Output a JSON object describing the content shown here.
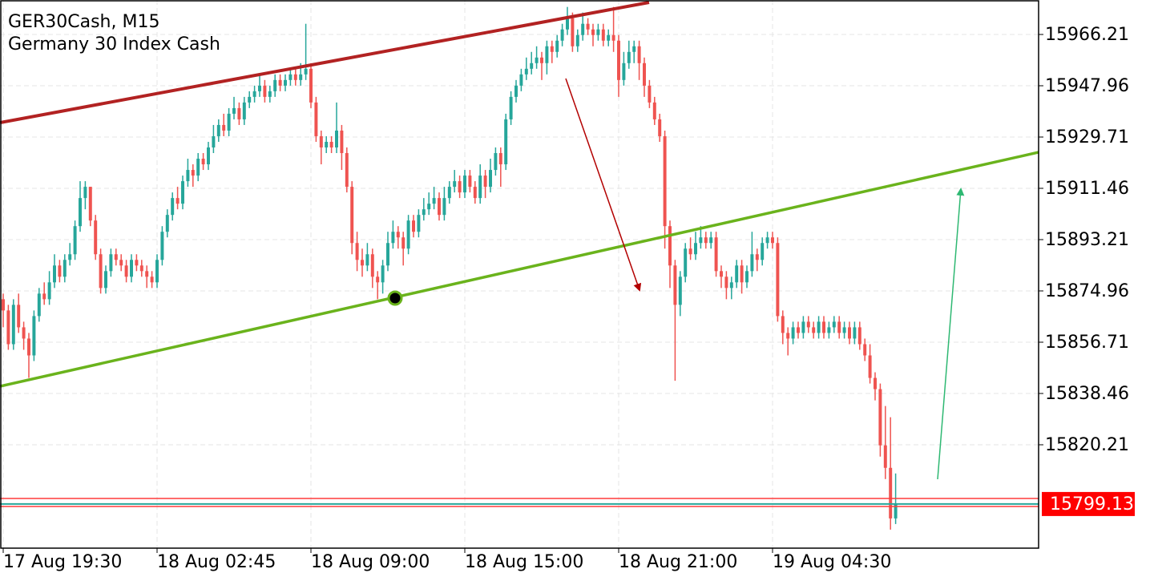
{
  "chart_data": {
    "type": "candlestick",
    "title": "GER30Cash, M15",
    "subtitle": "Germany 30 Index Cash",
    "up_color": "#26a69a",
    "down_color": "#ef5350",
    "grid": true,
    "current_price": 15799.13,
    "current_price_color": "#ff0000",
    "xlim": [
      -0.625,
      201.875
    ],
    "xticks": [
      {
        "value": 0,
        "label": "17 Aug 19:30"
      },
      {
        "value": 30,
        "label": "18 Aug 02:45"
      },
      {
        "value": 60,
        "label": "18 Aug 09:00"
      },
      {
        "value": 90,
        "label": "18 Aug 15:00"
      },
      {
        "value": 120,
        "label": "18 Aug 21:00"
      },
      {
        "value": 150,
        "label": "19 Aug 04:30"
      }
    ],
    "ylim": [
      15783.42,
      15978.47
    ],
    "yticks": [
      15820.21,
      15838.46,
      15856.71,
      15874.96,
      15893.21,
      15911.46,
      15929.71,
      15947.96,
      15966.21
    ],
    "open": [
      15872,
      15868,
      15856,
      15870,
      15862,
      15858,
      15852,
      15866,
      15874,
      15872,
      15878,
      15884,
      15880,
      15886,
      15888,
      15898,
      15908,
      15912,
      15900,
      15888,
      15876,
      15882,
      15888,
      15886,
      15884,
      15880,
      15886,
      15884,
      15882,
      15880,
      15878,
      15886,
      15896,
      15902,
      15908,
      15906,
      15914,
      15918,
      15916,
      15922,
      15920,
      15926,
      15930,
      15934,
      15932,
      15938,
      15940,
      15936,
      15942,
      15944,
      15946,
      15948,
      15944,
      15946,
      15950,
      15948,
      15950,
      15952,
      15950,
      15952,
      15954,
      15942,
      15930,
      15926,
      15928,
      15926,
      15932,
      15924,
      15912,
      15892,
      15886,
      15884,
      15888,
      15880,
      15878,
      15884,
      15892,
      15896,
      15894,
      15890,
      15900,
      15896,
      15902,
      15904,
      15906,
      15908,
      15902,
      15908,
      15912,
      15914,
      15910,
      15916,
      15912,
      15908,
      15916,
      15912,
      15918,
      15924,
      15920,
      15936,
      15944,
      15948,
      15952,
      15954,
      15956,
      15958,
      15956,
      15962,
      15960,
      15964,
      15968,
      15972,
      15962,
      15966,
      15970,
      15968,
      15966,
      15968,
      15964,
      15966,
      15964,
      15950,
      15956,
      15960,
      15962,
      15956,
      15948,
      15942,
      15936,
      15930,
      15898,
      15884,
      15870,
      15880,
      15890,
      15888,
      15892,
      15894,
      15892,
      15894,
      15882,
      15880,
      15876,
      15878,
      15884,
      15878,
      15882,
      15888,
      15886,
      15892,
      15894,
      15892,
      15866,
      15860,
      15858,
      15862,
      15860,
      15864,
      15862,
      15860,
      15864,
      15860,
      15862,
      15864,
      15860,
      15862,
      15858,
      15862,
      15856,
      15852,
      15844,
      15840,
      15820,
      15812,
      15794
    ],
    "high": [
      15874,
      15870,
      15872,
      15874,
      15864,
      15860,
      15868,
      15876,
      15878,
      15882,
      15888,
      15886,
      15888,
      15892,
      15900,
      15914,
      15914,
      15912,
      15902,
      15890,
      15884,
      15890,
      15890,
      15888,
      15886,
      15888,
      15888,
      15886,
      15884,
      15882,
      15888,
      15898,
      15904,
      15910,
      15912,
      15916,
      15922,
      15920,
      15924,
      15924,
      15928,
      15934,
      15936,
      15938,
      15940,
      15944,
      15942,
      15944,
      15946,
      15948,
      15952,
      15950,
      15948,
      15952,
      15952,
      15952,
      15954,
      15954,
      15956,
      15970,
      15956,
      15944,
      15932,
      15930,
      15930,
      15942,
      15934,
      15926,
      15914,
      15896,
      15890,
      15892,
      15890,
      15882,
      15886,
      15896,
      15900,
      15898,
      15896,
      15902,
      15902,
      15904,
      15908,
      15910,
      15912,
      15910,
      15912,
      15914,
      15918,
      15916,
      15918,
      15918,
      15914,
      15920,
      15918,
      15922,
      15926,
      15926,
      15938,
      15946,
      15950,
      15954,
      15958,
      15960,
      15962,
      15960,
      15964,
      15964,
      15966,
      15970,
      15976,
      15974,
      15968,
      15974,
      15972,
      15970,
      15970,
      15970,
      15968,
      15976,
      15966,
      15960,
      15964,
      15964,
      15964,
      15958,
      15950,
      15944,
      15938,
      15932,
      15900,
      15886,
      15882,
      15892,
      15894,
      15896,
      15898,
      15896,
      15896,
      15896,
      15884,
      15882,
      15880,
      15886,
      15886,
      15884,
      15896,
      15890,
      15894,
      15896,
      15896,
      15894,
      15868,
      15862,
      15864,
      15864,
      15866,
      15866,
      15864,
      15866,
      15866,
      15864,
      15866,
      15866,
      15864,
      15864,
      15864,
      15864,
      15858,
      15856,
      15846,
      15842,
      15834,
      15830,
      15810
    ],
    "low": [
      15862,
      15854,
      15854,
      15860,
      15854,
      15844,
      15850,
      15864,
      15870,
      15870,
      15876,
      15878,
      15878,
      15884,
      15886,
      15896,
      15904,
      15898,
      15886,
      15874,
      15874,
      15880,
      15884,
      15882,
      15878,
      15878,
      15882,
      15880,
      15876,
      15876,
      15876,
      15884,
      15894,
      15900,
      15904,
      15904,
      15912,
      15912,
      15914,
      15918,
      15918,
      15924,
      15928,
      15930,
      15930,
      15936,
      15934,
      15934,
      15940,
      15942,
      15944,
      15942,
      15942,
      15944,
      15946,
      15946,
      15948,
      15948,
      15948,
      15950,
      15940,
      15928,
      15920,
      15924,
      15924,
      15924,
      15918,
      15910,
      15888,
      15882,
      15880,
      15882,
      15876,
      15872,
      15874,
      15882,
      15890,
      15890,
      15884,
      15888,
      15894,
      15894,
      15900,
      15902,
      15904,
      15900,
      15900,
      15906,
      15910,
      15908,
      15908,
      15910,
      15906,
      15906,
      15908,
      15910,
      15916,
      15912,
      15918,
      15934,
      15942,
      15946,
      15950,
      15952,
      15954,
      15950,
      15952,
      15956,
      15958,
      15962,
      15966,
      15960,
      15960,
      15964,
      15966,
      15962,
      15964,
      15962,
      15962,
      15960,
      15944,
      15948,
      15954,
      15956,
      15950,
      15944,
      15940,
      15934,
      15928,
      15890,
      15876,
      15843,
      15866,
      15878,
      15886,
      15886,
      15890,
      15890,
      15890,
      15880,
      15876,
      15872,
      15872,
      15876,
      15874,
      15876,
      15880,
      15882,
      15884,
      15890,
      15890,
      15864,
      15856,
      15852,
      15856,
      15858,
      15858,
      15860,
      15858,
      15858,
      15858,
      15858,
      15860,
      15858,
      15858,
      15856,
      15856,
      15854,
      15850,
      15842,
      15836,
      15816,
      15808,
      15790,
      15792
    ],
    "close": [
      15868,
      15856,
      15870,
      15862,
      15858,
      15852,
      15866,
      15874,
      15872,
      15878,
      15884,
      15880,
      15886,
      15888,
      15898,
      15908,
      15912,
      15900,
      15888,
      15876,
      15882,
      15888,
      15886,
      15884,
      15880,
      15886,
      15884,
      15882,
      15880,
      15878,
      15886,
      15896,
      15902,
      15908,
      15906,
      15914,
      15918,
      15916,
      15922,
      15920,
      15926,
      15930,
      15934,
      15932,
      15938,
      15940,
      15936,
      15942,
      15944,
      15946,
      15948,
      15944,
      15946,
      15950,
      15948,
      15950,
      15952,
      15950,
      15952,
      15954,
      15942,
      15930,
      15926,
      15928,
      15926,
      15932,
      15924,
      15912,
      15892,
      15886,
      15884,
      15888,
      15880,
      15878,
      15884,
      15892,
      15896,
      15894,
      15890,
      15900,
      15896,
      15902,
      15904,
      15906,
      15908,
      15902,
      15908,
      15912,
      15914,
      15910,
      15916,
      15912,
      15908,
      15916,
      15912,
      15918,
      15924,
      15920,
      15936,
      15944,
      15948,
      15952,
      15954,
      15956,
      15958,
      15956,
      15962,
      15960,
      15964,
      15968,
      15972,
      15962,
      15966,
      15970,
      15968,
      15966,
      15968,
      15964,
      15966,
      15964,
      15950,
      15956,
      15960,
      15962,
      15956,
      15948,
      15942,
      15936,
      15930,
      15898,
      15884,
      15870,
      15880,
      15890,
      15888,
      15892,
      15894,
      15892,
      15894,
      15882,
      15880,
      15876,
      15878,
      15884,
      15878,
      15882,
      15888,
      15886,
      15892,
      15894,
      15892,
      15866,
      15860,
      15858,
      15862,
      15860,
      15864,
      15862,
      15860,
      15864,
      15860,
      15862,
      15864,
      15860,
      15862,
      15858,
      15862,
      15856,
      15852,
      15844,
      15840,
      15820,
      15812,
      15794,
      15799.13
    ]
  }
}
